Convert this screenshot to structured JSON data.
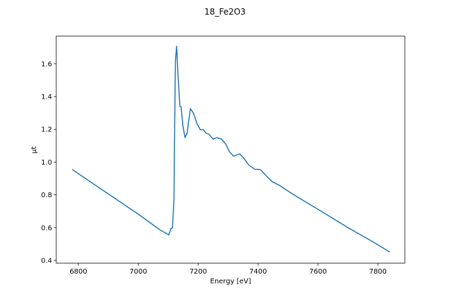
{
  "chart_data": {
    "type": "line",
    "title": "18_Fe2O3",
    "xlabel": "Energy [eV]",
    "ylabel": "μt",
    "xlim": [
      6726,
      7890
    ],
    "ylim": [
      0.383,
      1.769
    ],
    "xticks": [
      6800,
      7000,
      7200,
      7400,
      7600,
      7800
    ],
    "xtick_labels": [
      "6800",
      "7000",
      "7200",
      "7400",
      "7600",
      "7800"
    ],
    "yticks": [
      0.4,
      0.6,
      0.8,
      1.0,
      1.2,
      1.4,
      1.6
    ],
    "ytick_labels": [
      "0.4",
      "0.6",
      "0.8",
      "1.0",
      "1.2",
      "1.4",
      "1.6"
    ],
    "grid": false,
    "series": [
      {
        "name": "18_Fe2O3",
        "color": "#1f77b4",
        "x": [
          6779,
          6900,
          7000,
          7072,
          7102,
          7109,
          7114,
          7119,
          7122,
          7124,
          7128,
          7132,
          7139,
          7143,
          7149,
          7156,
          7163,
          7168,
          7174,
          7184,
          7196,
          7207,
          7217,
          7226,
          7236,
          7250,
          7261,
          7277,
          7293,
          7304,
          7318,
          7339,
          7350,
          7369,
          7389,
          7408,
          7427,
          7447,
          7474,
          7505,
          7536,
          7600,
          7700,
          7780,
          7840
        ],
        "y": [
          0.955,
          0.806,
          0.682,
          0.587,
          0.556,
          0.595,
          0.597,
          0.77,
          1.33,
          1.62,
          1.707,
          1.545,
          1.34,
          1.337,
          1.22,
          1.15,
          1.177,
          1.248,
          1.326,
          1.3,
          1.234,
          1.198,
          1.198,
          1.177,
          1.17,
          1.139,
          1.149,
          1.142,
          1.107,
          1.064,
          1.036,
          1.05,
          1.029,
          0.982,
          0.956,
          0.954,
          0.916,
          0.88,
          0.855,
          0.817,
          0.782,
          0.712,
          0.6,
          0.517,
          0.451
        ]
      }
    ]
  }
}
